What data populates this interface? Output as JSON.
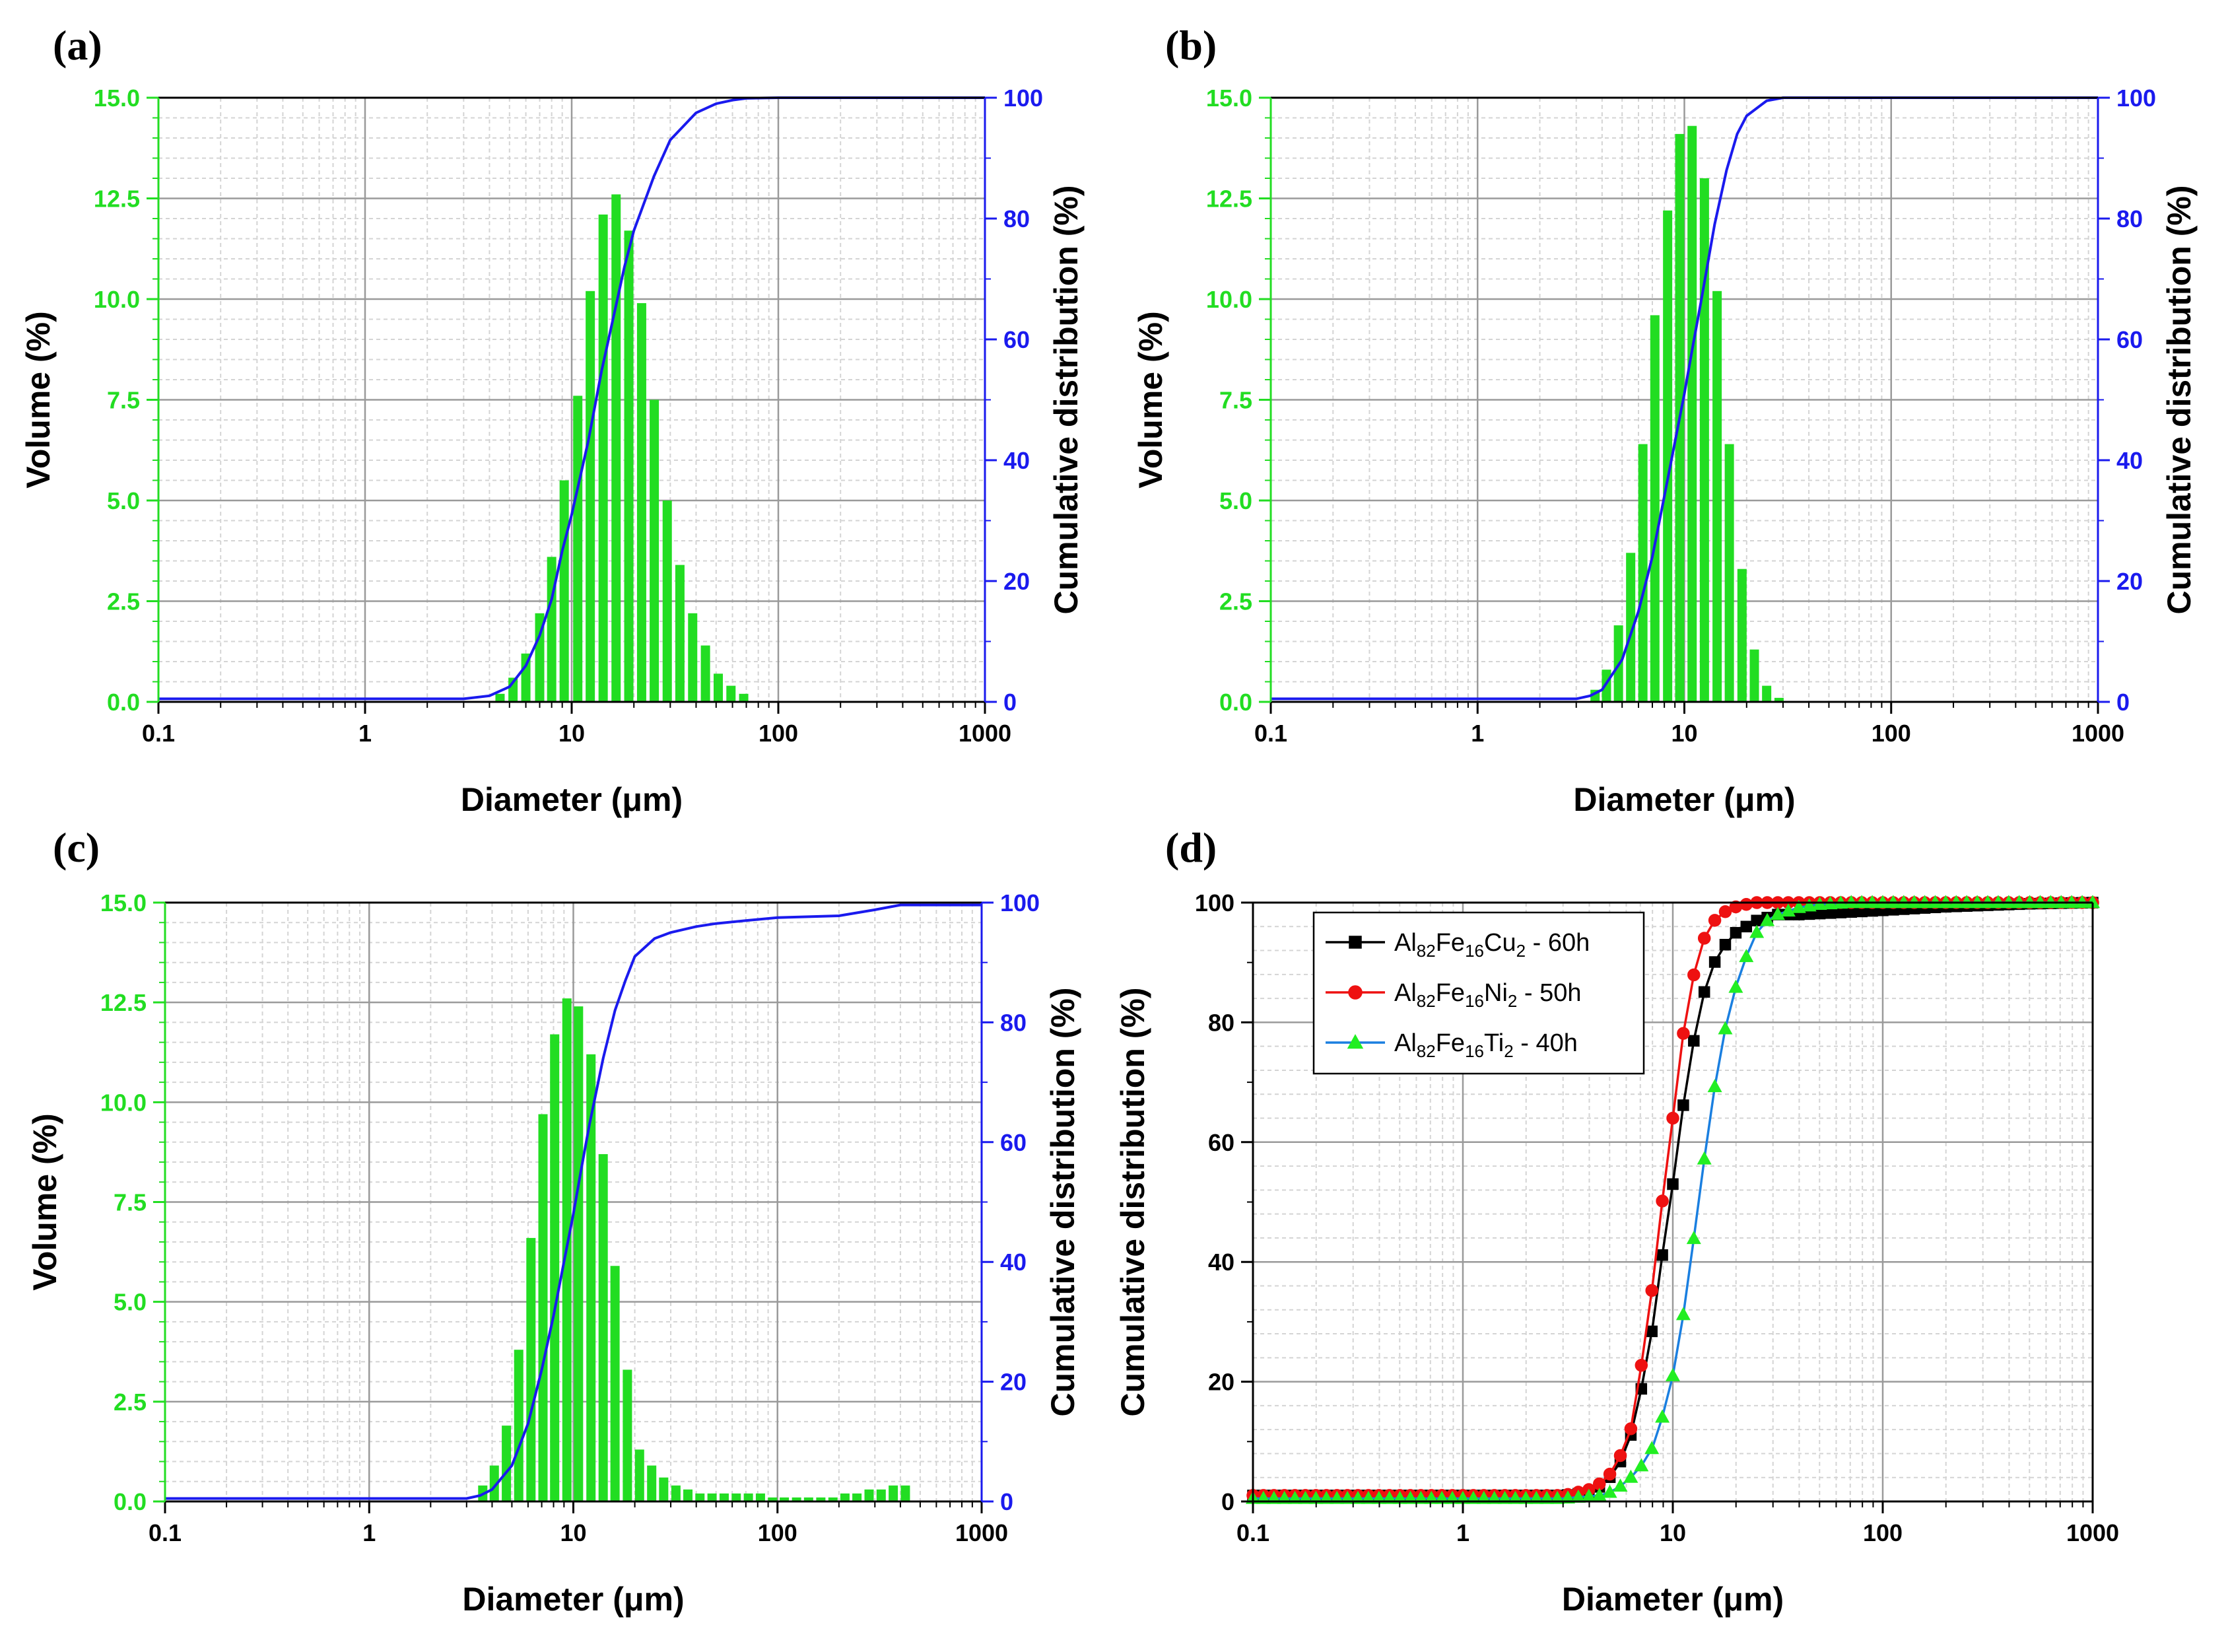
{
  "figure": {
    "panel_labels": [
      "(a)",
      "(b)",
      "(c)",
      "(d)"
    ]
  },
  "colors": {
    "bar": "#22dd22",
    "left_axis": "#22dd22",
    "right_axis": "#1a1aee",
    "curve": "#1a1aee",
    "series_cu": "#000000",
    "series_ni": "#ee1111",
    "series_ti_line": "#1a7fe0",
    "series_ti_marker": "#22ee22"
  },
  "chart_data": [
    {
      "panel": "(a)",
      "type": "bar+line",
      "xlabel": "Diameter (μm)",
      "ylabel_left": "Volume (%)",
      "ylabel_right": "Cumulative distribution (%)",
      "xscale": "log",
      "xlim": [
        0.1,
        1000
      ],
      "ylim_left": [
        0,
        15
      ],
      "ylim_right": [
        0,
        100
      ],
      "x_ticks": [
        "0.1",
        "1",
        "10",
        "100",
        "1000"
      ],
      "yleft_ticks": [
        "0.0",
        "2.5",
        "5.0",
        "7.5",
        "10.0",
        "12.5",
        "15.0"
      ],
      "yright_ticks": [
        "0",
        "20",
        "40",
        "60",
        "80",
        "100"
      ],
      "grid": true,
      "bars": {
        "x": [
          4.5,
          5.2,
          6.0,
          7.0,
          8.0,
          9.2,
          10.7,
          12.3,
          14.2,
          16.4,
          18.9,
          21.8,
          25.1,
          29.0,
          33.4,
          38.5,
          44.4,
          51.2,
          59.0,
          68.0
        ],
        "values": [
          0.2,
          0.6,
          1.2,
          2.2,
          3.6,
          5.5,
          7.6,
          10.2,
          12.1,
          12.6,
          11.7,
          9.9,
          7.5,
          5.0,
          3.4,
          2.2,
          1.4,
          0.7,
          0.4,
          0.2
        ]
      },
      "cumulative": {
        "x": [
          0.1,
          3.0,
          4.0,
          5.0,
          6.0,
          7.0,
          8.0,
          9.0,
          10.0,
          12.0,
          14.0,
          16.0,
          18.0,
          20.0,
          25.0,
          30.0,
          40.0,
          50.0,
          60.0,
          70.0,
          100.0,
          1000.0
        ],
        "values": [
          0.5,
          0.5,
          1.0,
          2.5,
          6,
          11,
          17,
          25,
          31,
          43,
          55,
          64,
          72,
          78,
          87,
          93,
          97.5,
          99,
          99.6,
          99.9,
          100,
          100
        ]
      }
    },
    {
      "panel": "(b)",
      "type": "bar+line",
      "xlabel": "Diameter (μm)",
      "ylabel_left": "Volume (%)",
      "ylabel_right": "Cumulative distribution (%)",
      "xscale": "log",
      "xlim": [
        0.1,
        1000
      ],
      "ylim_left": [
        0,
        15
      ],
      "ylim_right": [
        0,
        100
      ],
      "x_ticks": [
        "0.1",
        "1",
        "10",
        "100",
        "1000"
      ],
      "yleft_ticks": [
        "0.0",
        "2.5",
        "5.0",
        "7.5",
        "10.0",
        "12.5",
        "15.0"
      ],
      "yright_ticks": [
        "0",
        "20",
        "40",
        "60",
        "80",
        "100"
      ],
      "grid": true,
      "bars": {
        "x": [
          3.7,
          4.2,
          4.8,
          5.5,
          6.3,
          7.2,
          8.3,
          9.5,
          10.9,
          12.5,
          14.4,
          16.5,
          19.0,
          21.8,
          25.0,
          28.7
        ],
        "values": [
          0.3,
          0.8,
          1.9,
          3.7,
          6.4,
          9.6,
          12.2,
          14.1,
          14.3,
          13.0,
          10.2,
          6.4,
          3.3,
          1.3,
          0.4,
          0.1
        ]
      },
      "cumulative": {
        "x": [
          0.1,
          3.0,
          3.5,
          4.0,
          5.0,
          6.0,
          7.0,
          8.0,
          9.0,
          10.0,
          11.0,
          12.0,
          14.0,
          16.0,
          18.0,
          20.0,
          25.0,
          30.0,
          40.0,
          1000.0
        ],
        "values": [
          0.5,
          0.5,
          1.0,
          2.0,
          7,
          15,
          24,
          34,
          43,
          51,
          59,
          66,
          79,
          88,
          94,
          97,
          99.5,
          100,
          100,
          100
        ]
      }
    },
    {
      "panel": "(c)",
      "type": "bar+line",
      "xlabel": "Diameter (μm)",
      "ylabel_left": "Volume (%)",
      "ylabel_right": "Cumulative distribution (%)",
      "xscale": "log",
      "xlim": [
        0.1,
        1000
      ],
      "ylim_left": [
        0,
        15
      ],
      "ylim_right": [
        0,
        100
      ],
      "x_ticks": [
        "0.1",
        "1",
        "10",
        "100",
        "1000"
      ],
      "yleft_ticks": [
        "0.0",
        "2.5",
        "5.0",
        "7.5",
        "10.0",
        "12.5",
        "15.0"
      ],
      "yright_ticks": [
        "0",
        "20",
        "40",
        "60",
        "80",
        "100"
      ],
      "grid": true,
      "bars": {
        "x": [
          3.6,
          4.1,
          4.7,
          5.4,
          6.2,
          7.1,
          8.1,
          9.3,
          10.6,
          12.2,
          14.0,
          16.0,
          18.4,
          21.1,
          24.2,
          27.7,
          31.8,
          36.4,
          41.7,
          47.8,
          54.8,
          62.8,
          72.0,
          82.5,
          94.6,
          108,
          124,
          142,
          163,
          187,
          214,
          245,
          281,
          322,
          369,
          423
        ],
        "values": [
          0.4,
          0.9,
          1.9,
          3.8,
          6.6,
          9.7,
          11.7,
          12.6,
          12.4,
          11.2,
          8.7,
          5.9,
          3.3,
          1.3,
          0.9,
          0.6,
          0.4,
          0.3,
          0.2,
          0.2,
          0.2,
          0.2,
          0.2,
          0.2,
          0.1,
          0.1,
          0.1,
          0.1,
          0.1,
          0.1,
          0.2,
          0.2,
          0.3,
          0.3,
          0.4,
          0.4
        ]
      },
      "cumulative": {
        "x": [
          0.1,
          3.0,
          3.5,
          4.0,
          5.0,
          6.0,
          7.0,
          8.0,
          9.0,
          10.0,
          11.0,
          12.0,
          14.0,
          16.0,
          18.0,
          20.0,
          25.0,
          30.0,
          40.0,
          50.0,
          70.0,
          100.0,
          200.0,
          300.0,
          400.0,
          1000.0
        ],
        "values": [
          0.5,
          0.5,
          1.0,
          2.0,
          6,
          13,
          22,
          31,
          40,
          48,
          56,
          63,
          74,
          82,
          87,
          91,
          94,
          95,
          96,
          96.5,
          97,
          97.5,
          97.8,
          98.8,
          99.6,
          99.6
        ]
      }
    },
    {
      "panel": "(d)",
      "type": "line",
      "xlabel": "Diameter (μm)",
      "ylabel": "Cumulative distribution (%)",
      "xscale": "log",
      "xlim": [
        0.1,
        1000
      ],
      "ylim": [
        0,
        100
      ],
      "x_ticks": [
        "0.1",
        "1",
        "10",
        "100",
        "1000"
      ],
      "y_ticks": [
        "0",
        "20",
        "40",
        "60",
        "80",
        "100"
      ],
      "grid": true,
      "legend_position": "top-left",
      "series": [
        {
          "label_main": "Al",
          "label_parts": [
            {
              "t": "Al"
            },
            {
              "t": "82",
              "sub": true
            },
            {
              "t": "Fe"
            },
            {
              "t": "16",
              "sub": true
            },
            {
              "t": "Cu"
            },
            {
              "t": "2",
              "sub": true
            },
            {
              "t": " - 60h"
            }
          ],
          "marker": "square",
          "x": [
            0.1,
            1.0,
            3.0,
            4.0,
            4.5,
            5.0,
            5.6,
            6.3,
            7.1,
            8.0,
            8.9,
            10.0,
            11.2,
            12.6,
            14.1,
            15.8,
            17.8,
            20.0,
            22.4,
            25.1,
            28.2,
            31.6,
            40.0,
            60.0,
            100.0,
            200.0,
            500.0,
            1000.0
          ],
          "values": [
            1,
            1,
            1,
            1.5,
            2.5,
            4,
            6.5,
            11,
            19,
            29,
            41,
            53,
            66,
            77,
            85,
            90,
            93,
            95,
            96,
            97,
            97.5,
            98,
            98,
            98.3,
            98.7,
            99.3,
            99.8,
            100
          ]
        },
        {
          "label_parts": [
            {
              "t": "Al"
            },
            {
              "t": "82",
              "sub": true
            },
            {
              "t": "Fe"
            },
            {
              "t": "16",
              "sub": true
            },
            {
              "t": "Ni"
            },
            {
              "t": "2",
              "sub": true
            },
            {
              "t": " - 50h"
            }
          ],
          "marker": "circle",
          "x": [
            0.1,
            1.0,
            3.0,
            3.5,
            4.0,
            4.5,
            5.0,
            5.6,
            6.3,
            7.1,
            8.0,
            8.9,
            10.0,
            11.2,
            12.6,
            14.1,
            15.8,
            17.8,
            20.0,
            22.4,
            25.1,
            28.2,
            35.0,
            50.0,
            100.0,
            1000.0
          ],
          "values": [
            1,
            1,
            1,
            1.5,
            2,
            3,
            4.5,
            7.5,
            12,
            23,
            36,
            50,
            64,
            78,
            88,
            94,
            97,
            98.5,
            99.3,
            99.7,
            100,
            100,
            100,
            100,
            100,
            100
          ]
        },
        {
          "label_parts": [
            {
              "t": "Al"
            },
            {
              "t": "82",
              "sub": true
            },
            {
              "t": "Fe"
            },
            {
              "t": "16",
              "sub": true
            },
            {
              "t": "Ti"
            },
            {
              "t": "2",
              "sub": true
            },
            {
              "t": " - 40h"
            }
          ],
          "marker": "triangle",
          "x": [
            0.1,
            1.0,
            3.0,
            4.5,
            5.0,
            5.6,
            6.3,
            7.1,
            8.0,
            8.9,
            10.0,
            11.2,
            12.6,
            14.1,
            15.8,
            17.8,
            20.0,
            22.4,
            25.1,
            28.2,
            31.6,
            40.0,
            50.0,
            70.0,
            100.0,
            1000.0
          ],
          "values": [
            0.5,
            0.5,
            0.5,
            1,
            1.5,
            2.5,
            4,
            6,
            9,
            14,
            21,
            31,
            44,
            57,
            69,
            79,
            86,
            91,
            95,
            97,
            98,
            99.2,
            99.7,
            100,
            100,
            100
          ]
        }
      ]
    }
  ]
}
